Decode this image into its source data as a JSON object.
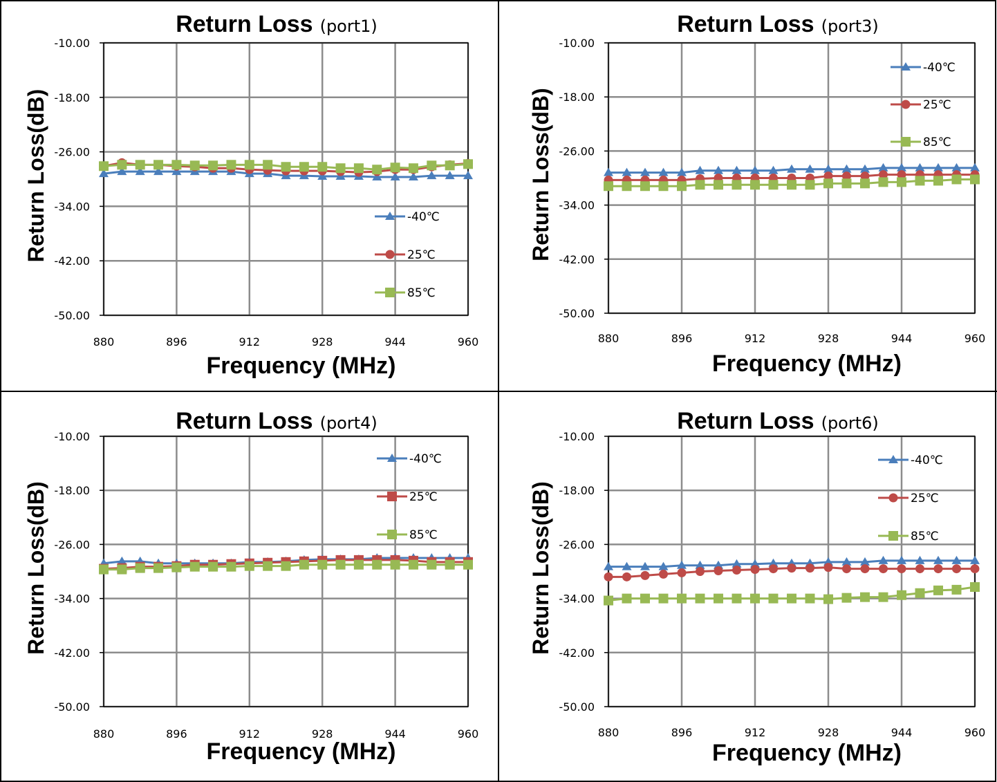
{
  "colors": {
    "series_-40": "#4a7ebb",
    "series_25": "#be4b48",
    "series_85": "#98b954",
    "grid": "#8c8c8c",
    "border": "#000000"
  },
  "chart_data": [
    {
      "type": "line",
      "title": "Return Loss",
      "subtitle": "(port1)",
      "xlabel": "Frequency (MHz)",
      "ylabel": "Return Loss(dB)",
      "x_ticks": [
        "880",
        "896",
        "912",
        "928",
        "944",
        "960"
      ],
      "y_ticks": [
        "-10.00",
        "-18.00",
        "-26.00",
        "-34.00",
        "-42.00",
        "-50.00"
      ],
      "xlim": [
        880,
        960
      ],
      "ylim": [
        -50,
        -10
      ],
      "grid": true,
      "legend_position": "lower-right",
      "x": [
        880,
        884,
        888,
        892,
        896,
        900,
        904,
        908,
        912,
        916,
        920,
        924,
        928,
        932,
        936,
        940,
        944,
        948,
        952,
        956,
        960
      ],
      "series": [
        {
          "name": "-40℃",
          "marker": "triangle",
          "values": [
            -29.2,
            -28.9,
            -28.9,
            -28.9,
            -28.9,
            -28.9,
            -28.9,
            -28.9,
            -29.2,
            -29.2,
            -29.5,
            -29.5,
            -29.6,
            -29.6,
            -29.6,
            -29.7,
            -29.7,
            -29.7,
            -29.5,
            -29.5,
            -29.5
          ]
        },
        {
          "name": "25℃",
          "marker": "circle",
          "values": [
            -28.1,
            -27.6,
            -27.9,
            -27.9,
            -28.1,
            -28.2,
            -28.4,
            -28.4,
            -28.6,
            -28.7,
            -28.8,
            -28.8,
            -28.8,
            -28.9,
            -29.0,
            -28.9,
            -28.6,
            -28.6,
            -28.2,
            -27.9,
            -27.7
          ]
        },
        {
          "name": "85℃",
          "marker": "square",
          "values": [
            -28.1,
            -27.9,
            -27.9,
            -27.9,
            -27.9,
            -28.0,
            -28.0,
            -27.9,
            -27.9,
            -27.9,
            -28.2,
            -28.2,
            -28.2,
            -28.4,
            -28.4,
            -28.6,
            -28.3,
            -28.4,
            -28.0,
            -28.0,
            -27.8
          ]
        }
      ]
    },
    {
      "type": "line",
      "title": "Return Loss",
      "subtitle": "(port3)",
      "xlabel": "Frequency (MHz)",
      "ylabel": "Return Loss(dB)",
      "x_ticks": [
        "880",
        "896",
        "912",
        "928",
        "944",
        "960"
      ],
      "y_ticks": [
        "-10.00",
        "-18.00",
        "-26.00",
        "-34.00",
        "-42.00",
        "-50.00"
      ],
      "xlim": [
        880,
        960
      ],
      "ylim": [
        -50,
        -10
      ],
      "grid": true,
      "legend_position": "upper-right",
      "x": [
        880,
        884,
        888,
        892,
        896,
        900,
        904,
        908,
        912,
        916,
        920,
        924,
        928,
        932,
        936,
        940,
        944,
        948,
        952,
        956,
        960
      ],
      "series": [
        {
          "name": "-40℃",
          "marker": "triangle",
          "values": [
            -29.2,
            -29.2,
            -29.2,
            -29.2,
            -29.2,
            -28.9,
            -28.9,
            -28.9,
            -28.9,
            -28.9,
            -28.7,
            -28.7,
            -28.7,
            -28.7,
            -28.7,
            -28.5,
            -28.5,
            -28.5,
            -28.5,
            -28.5,
            -28.5
          ]
        },
        {
          "name": "25℃",
          "marker": "circle",
          "values": [
            -30.3,
            -30.3,
            -30.3,
            -30.3,
            -30.3,
            -30.1,
            -30.0,
            -30.0,
            -30.0,
            -30.0,
            -30.0,
            -30.0,
            -29.7,
            -29.7,
            -29.7,
            -29.5,
            -29.5,
            -29.5,
            -29.5,
            -29.5,
            -29.5
          ]
        },
        {
          "name": "85℃",
          "marker": "square",
          "values": [
            -31.2,
            -31.2,
            -31.2,
            -31.2,
            -31.2,
            -31.0,
            -31.0,
            -31.0,
            -31.0,
            -31.0,
            -31.0,
            -31.0,
            -30.8,
            -30.8,
            -30.8,
            -30.6,
            -30.6,
            -30.4,
            -30.4,
            -30.2,
            -30.2
          ]
        }
      ]
    },
    {
      "type": "line",
      "title": "Return Loss",
      "subtitle": "(port4)",
      "xlabel": "Frequency (MHz)",
      "ylabel": "Return Loss(dB)",
      "x_ticks": [
        "880",
        "896",
        "912",
        "928",
        "944",
        "960"
      ],
      "y_ticks": [
        "-10.00",
        "-18.00",
        "-26.00",
        "-34.00",
        "-42.00",
        "-50.00"
      ],
      "xlim": [
        880,
        960
      ],
      "ylim": [
        -50,
        -10
      ],
      "grid": true,
      "legend_position": "upper-right",
      "x": [
        880,
        884,
        888,
        892,
        896,
        900,
        904,
        908,
        912,
        916,
        920,
        924,
        928,
        932,
        936,
        940,
        944,
        948,
        952,
        956,
        960
      ],
      "series": [
        {
          "name": "-40℃",
          "marker": "triangle",
          "values": [
            -28.8,
            -28.5,
            -28.5,
            -28.8,
            -28.8,
            -28.8,
            -28.8,
            -28.8,
            -28.6,
            -28.6,
            -28.5,
            -28.3,
            -28.2,
            -28.2,
            -28.2,
            -28.0,
            -28.0,
            -28.0,
            -28.0,
            -28.0,
            -28.0
          ]
        },
        {
          "name": "25℃",
          "marker": "square",
          "values": [
            -29.6,
            -29.5,
            -29.3,
            -29.3,
            -29.2,
            -29.0,
            -29.0,
            -28.9,
            -28.8,
            -28.7,
            -28.6,
            -28.5,
            -28.4,
            -28.3,
            -28.3,
            -28.3,
            -28.3,
            -28.4,
            -28.6,
            -28.6,
            -28.6
          ]
        },
        {
          "name": "85℃",
          "marker": "square",
          "values": [
            -29.7,
            -29.7,
            -29.5,
            -29.5,
            -29.4,
            -29.3,
            -29.3,
            -29.3,
            -29.2,
            -29.2,
            -29.2,
            -29.0,
            -29.0,
            -29.0,
            -29.0,
            -29.0,
            -29.0,
            -29.0,
            -29.0,
            -29.0,
            -29.0
          ]
        }
      ]
    },
    {
      "type": "line",
      "title": "Return Loss",
      "subtitle": "(port6)",
      "xlabel": "Frequency (MHz)",
      "ylabel": "Return Loss(dB)",
      "x_ticks": [
        "880",
        "896",
        "912",
        "928",
        "944",
        "960"
      ],
      "y_ticks": [
        "-10.00",
        "-18.00",
        "-26.00",
        "-34.00",
        "-42.00",
        "-50.00"
      ],
      "xlim": [
        880,
        960
      ],
      "ylim": [
        -50,
        -10
      ],
      "grid": true,
      "legend_position": "upper-right",
      "x": [
        880,
        884,
        888,
        892,
        896,
        900,
        904,
        908,
        912,
        916,
        920,
        924,
        928,
        932,
        936,
        940,
        944,
        948,
        952,
        956,
        960
      ],
      "series": [
        {
          "name": "-40℃",
          "marker": "triangle",
          "values": [
            -29.3,
            -29.3,
            -29.3,
            -29.3,
            -29.1,
            -29.1,
            -29.1,
            -28.9,
            -28.9,
            -28.8,
            -28.8,
            -28.8,
            -28.6,
            -28.6,
            -28.6,
            -28.4,
            -28.4,
            -28.4,
            -28.4,
            -28.4,
            -28.4
          ]
        },
        {
          "name": "25℃",
          "marker": "circle",
          "values": [
            -30.8,
            -30.8,
            -30.6,
            -30.4,
            -30.2,
            -30.0,
            -29.9,
            -29.8,
            -29.7,
            -29.6,
            -29.5,
            -29.5,
            -29.4,
            -29.6,
            -29.6,
            -29.6,
            -29.6,
            -29.6,
            -29.6,
            -29.6,
            -29.6
          ]
        },
        {
          "name": "85℃",
          "marker": "square",
          "values": [
            -34.3,
            -34.0,
            -34.0,
            -34.0,
            -34.0,
            -34.0,
            -34.0,
            -34.0,
            -34.0,
            -34.0,
            -34.0,
            -34.0,
            -34.1,
            -33.9,
            -33.8,
            -33.8,
            -33.5,
            -33.2,
            -32.8,
            -32.7,
            -32.3
          ]
        }
      ]
    }
  ]
}
